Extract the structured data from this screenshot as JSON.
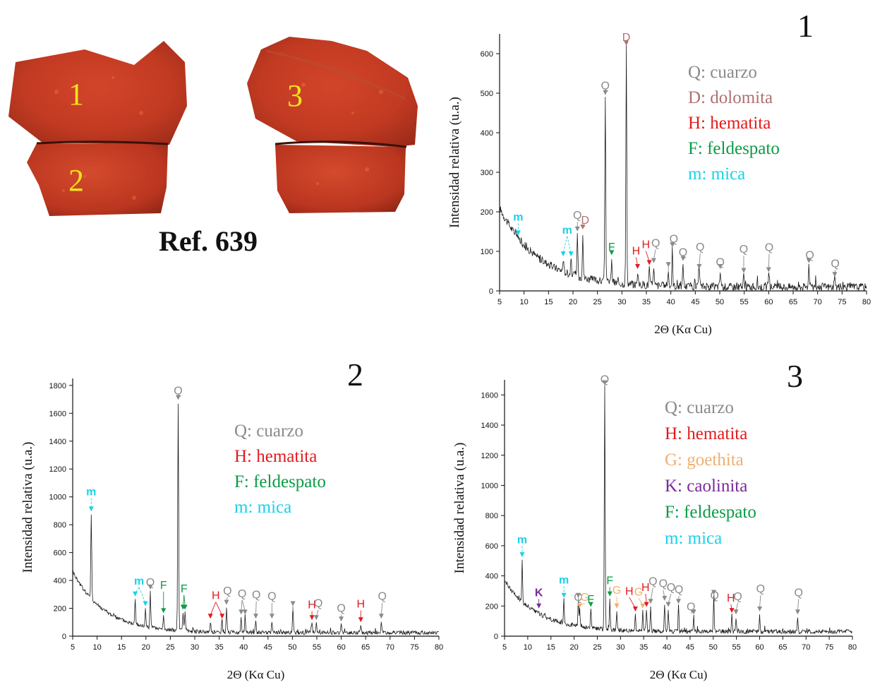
{
  "sample_photo": {
    "reference": "Ref. 639",
    "labels": [
      "1",
      "2",
      "3"
    ]
  },
  "chart_data": [
    {
      "type": "line",
      "panel": "1",
      "xlabel": "2Θ (Kα Cu)",
      "ylabel": "Intensidad relativa (u.a.)",
      "xlim": [
        5,
        80
      ],
      "ylim": [
        0,
        650
      ],
      "xticks": [
        5,
        10,
        15,
        20,
        25,
        30,
        35,
        40,
        45,
        50,
        55,
        60,
        65,
        70,
        75,
        80
      ],
      "yticks": [
        0,
        100,
        200,
        300,
        400,
        500,
        600
      ],
      "legend": [
        {
          "text": "Q: cuarzo",
          "color": "#8a8a8a"
        },
        {
          "text": "D: dolomita",
          "color": "#b07070"
        },
        {
          "text": "H: hematita",
          "color": "#e41a1c"
        },
        {
          "text": "F: feldespato",
          "color": "#0a9b45"
        },
        {
          "text": "m: mica",
          "color": "#1ad2e8"
        }
      ],
      "peaks": [
        {
          "x": 8.8,
          "y": 135,
          "label": "m",
          "ltype": "m",
          "lx": 8.8,
          "ly": 178
        },
        {
          "x": 18.0,
          "y": 82,
          "label": "m",
          "ltype": "m",
          "lx": 18.8,
          "ly": 145
        },
        {
          "x": 19.6,
          "y": 82,
          "label": "",
          "ltype": "m",
          "lx": 18.8,
          "ly": 145
        },
        {
          "x": 20.9,
          "y": 145,
          "label": "Q",
          "ltype": "Q",
          "lx": 20.9,
          "ly": 182
        },
        {
          "x": 22.0,
          "y": 150,
          "label": "D",
          "ltype": "D",
          "lx": 22.5,
          "ly": 170
        },
        {
          "x": 26.6,
          "y": 490,
          "label": "Q",
          "ltype": "Q",
          "lx": 26.6,
          "ly": 510
        },
        {
          "x": 27.9,
          "y": 85,
          "label": "F",
          "ltype": "F",
          "lx": 27.9,
          "ly": 102
        },
        {
          "x": 30.9,
          "y": 615,
          "label": "D",
          "ltype": "D",
          "lx": 30.9,
          "ly": 632
        },
        {
          "x": 33.2,
          "y": 50,
          "label": "H",
          "ltype": "H",
          "lx": 32.9,
          "ly": 92
        },
        {
          "x": 35.6,
          "y": 60,
          "label": "H",
          "ltype": "H",
          "lx": 34.9,
          "ly": 108
        },
        {
          "x": 36.5,
          "y": 65,
          "label": "Q",
          "ltype": "Q",
          "lx": 36.9,
          "ly": 112
        },
        {
          "x": 39.5,
          "y": 55,
          "label": "",
          "ltype": "Q",
          "lx": 39.5,
          "ly": 55
        },
        {
          "x": 40.3,
          "y": 105,
          "label": "Q",
          "ltype": "Q",
          "lx": 40.6,
          "ly": 122
        },
        {
          "x": 42.5,
          "y": 70,
          "label": "Q",
          "ltype": "Q",
          "lx": 42.5,
          "ly": 88
        },
        {
          "x": 45.8,
          "y": 50,
          "label": "Q",
          "ltype": "Q",
          "lx": 46.0,
          "ly": 102
        },
        {
          "x": 50.1,
          "y": 50,
          "label": "Q",
          "ltype": "Q",
          "lx": 50.1,
          "ly": 63
        },
        {
          "x": 54.9,
          "y": 40,
          "label": "Q",
          "ltype": "Q",
          "lx": 54.9,
          "ly": 96
        },
        {
          "x": 60.0,
          "y": 42,
          "label": "Q",
          "ltype": "Q",
          "lx": 60.1,
          "ly": 101
        },
        {
          "x": 68.2,
          "y": 65,
          "label": "Q",
          "ltype": "Q",
          "lx": 68.4,
          "ly": 81
        },
        {
          "x": 73.5,
          "y": 30,
          "label": "Q",
          "ltype": "Q",
          "lx": 73.6,
          "ly": 60
        }
      ]
    },
    {
      "type": "line",
      "panel": "2",
      "xlabel": "2Θ (Kα Cu)",
      "ylabel": "Intensidad relativa (u.a.)",
      "xlim": [
        5,
        80
      ],
      "ylim": [
        0,
        1850
      ],
      "xticks": [
        5,
        10,
        15,
        20,
        25,
        30,
        35,
        40,
        45,
        50,
        55,
        60,
        65,
        70,
        75,
        80
      ],
      "yticks": [
        0,
        200,
        400,
        600,
        800,
        1000,
        1200,
        1400,
        1600,
        1800
      ],
      "legend": [
        {
          "text": "Q: cuarzo",
          "color": "#8a8a8a"
        },
        {
          "text": "H: hematita",
          "color": "#e41a1c"
        },
        {
          "text": "F: feldespato",
          "color": "#0a9b45"
        },
        {
          "text": "m: mica",
          "color": "#1ad2e8"
        }
      ],
      "peaks": [
        {
          "x": 8.8,
          "y": 880,
          "label": "m",
          "ltype": "m",
          "lx": 8.8,
          "ly": 1010
        },
        {
          "x": 17.8,
          "y": 270,
          "label": "m",
          "ltype": "m",
          "lx": 18.6,
          "ly": 370
        },
        {
          "x": 19.9,
          "y": 200,
          "label": "",
          "ltype": "m",
          "lx": 18.6,
          "ly": 370
        },
        {
          "x": 20.9,
          "y": 320,
          "label": "Q",
          "ltype": "Q",
          "lx": 20.9,
          "ly": 360
        },
        {
          "x": 23.6,
          "y": 150,
          "label": "F",
          "ltype": "F",
          "lx": 23.6,
          "ly": 340
        },
        {
          "x": 26.6,
          "y": 1680,
          "label": "Q",
          "ltype": "Q",
          "lx": 26.6,
          "ly": 1735
        },
        {
          "x": 27.6,
          "y": 175,
          "label": "F",
          "ltype": "F",
          "lx": 27.8,
          "ly": 315
        },
        {
          "x": 28.0,
          "y": 175,
          "label": "",
          "ltype": "F",
          "lx": 27.8,
          "ly": 315
        },
        {
          "x": 33.2,
          "y": 110,
          "label": "H",
          "ltype": "H",
          "lx": 34.3,
          "ly": 265
        },
        {
          "x": 35.6,
          "y": 110,
          "label": "",
          "ltype": "H",
          "lx": 34.3,
          "ly": 265
        },
        {
          "x": 36.5,
          "y": 210,
          "label": "Q",
          "ltype": "Q",
          "lx": 36.7,
          "ly": 300
        },
        {
          "x": 39.5,
          "y": 140,
          "label": "Q",
          "ltype": "Q",
          "lx": 39.7,
          "ly": 280
        },
        {
          "x": 40.3,
          "y": 140,
          "label": "",
          "ltype": "Q",
          "lx": 39.7,
          "ly": 280
        },
        {
          "x": 42.5,
          "y": 110,
          "label": "Q",
          "ltype": "Q",
          "lx": 42.6,
          "ly": 270
        },
        {
          "x": 45.8,
          "y": 110,
          "label": "Q",
          "ltype": "Q",
          "lx": 45.8,
          "ly": 260
        },
        {
          "x": 50.1,
          "y": 200,
          "label": "",
          "ltype": "Q",
          "lx": 50.1,
          "ly": 200
        },
        {
          "x": 54.0,
          "y": 100,
          "label": "H",
          "ltype": "H",
          "lx": 54.0,
          "ly": 200
        },
        {
          "x": 54.9,
          "y": 100,
          "label": "Q",
          "ltype": "Q",
          "lx": 55.3,
          "ly": 210
        },
        {
          "x": 60.0,
          "y": 90,
          "label": "Q",
          "ltype": "Q",
          "lx": 60.0,
          "ly": 175
        },
        {
          "x": 64.0,
          "y": 85,
          "label": "H",
          "ltype": "H",
          "lx": 64.0,
          "ly": 205
        },
        {
          "x": 68.2,
          "y": 110,
          "label": "Q",
          "ltype": "Q",
          "lx": 68.4,
          "ly": 260
        }
      ]
    },
    {
      "type": "line",
      "panel": "3",
      "xlabel": "2Θ (Kα Cu)",
      "ylabel": "Intensidad relativa (u.a.)",
      "xlim": [
        5,
        80
      ],
      "ylim": [
        0,
        1700
      ],
      "xticks": [
        5,
        10,
        15,
        20,
        25,
        30,
        35,
        40,
        45,
        50,
        55,
        60,
        65,
        70,
        75,
        80
      ],
      "yticks": [
        0,
        200,
        400,
        600,
        800,
        1000,
        1200,
        1400,
        1600
      ],
      "legend": [
        {
          "text": "Q: cuarzo",
          "color": "#8a8a8a"
        },
        {
          "text": "H: hematita",
          "color": "#e41a1c"
        },
        {
          "text": "G: goethita",
          "color": "#f0b070"
        },
        {
          "text": "K: caolinita",
          "color": "#7a2a9a"
        },
        {
          "text": "F: feldespato",
          "color": "#0a9b45"
        },
        {
          "text": "m: mica",
          "color": "#1ad2e8"
        }
      ],
      "peaks": [
        {
          "x": 8.8,
          "y": 510,
          "label": "m",
          "ltype": "m",
          "lx": 8.8,
          "ly": 615
        },
        {
          "x": 12.4,
          "y": 170,
          "label": "K",
          "ltype": "K",
          "lx": 12.4,
          "ly": 265
        },
        {
          "x": 17.8,
          "y": 240,
          "label": "m",
          "ltype": "m",
          "lx": 17.8,
          "ly": 350
        },
        {
          "x": 20.9,
          "y": 240,
          "label": "Q",
          "ltype": "Q",
          "lx": 20.9,
          "ly": 235
        },
        {
          "x": 21.2,
          "y": 170,
          "label": "G",
          "ltype": "G",
          "lx": 22.3,
          "ly": 235
        },
        {
          "x": 23.6,
          "y": 180,
          "label": "F",
          "ltype": "F",
          "lx": 23.6,
          "ly": 220
        },
        {
          "x": 26.6,
          "y": 1650,
          "label": "Q",
          "ltype": "Q",
          "lx": 26.6,
          "ly": 1680
        },
        {
          "x": 27.7,
          "y": 250,
          "label": "F",
          "ltype": "F",
          "lx": 27.7,
          "ly": 345
        },
        {
          "x": 29.2,
          "y": 170,
          "label": "G",
          "ltype": "G",
          "lx": 29.2,
          "ly": 280
        },
        {
          "x": 33.2,
          "y": 150,
          "label": "H",
          "ltype": "H",
          "lx": 31.9,
          "ly": 275
        },
        {
          "x": 34.8,
          "y": 170,
          "label": "G",
          "ltype": "G",
          "lx": 33.9,
          "ly": 270
        },
        {
          "x": 35.6,
          "y": 180,
          "label": "H",
          "ltype": "H",
          "lx": 35.4,
          "ly": 300
        },
        {
          "x": 36.5,
          "y": 200,
          "label": "Q",
          "ltype": "Q",
          "lx": 37.0,
          "ly": 340
        },
        {
          "x": 39.5,
          "y": 220,
          "label": "Q",
          "ltype": "Q",
          "lx": 39.2,
          "ly": 325
        },
        {
          "x": 40.3,
          "y": 180,
          "label": "Q",
          "ltype": "Q",
          "lx": 40.9,
          "ly": 300
        },
        {
          "x": 42.5,
          "y": 200,
          "label": "Q",
          "ltype": "Q",
          "lx": 42.6,
          "ly": 285
        },
        {
          "x": 45.8,
          "y": 130,
          "label": "Q",
          "ltype": "Q",
          "lx": 45.2,
          "ly": 170
        },
        {
          "x": 50.1,
          "y": 260,
          "label": "Q",
          "ltype": "Q",
          "lx": 50.3,
          "ly": 245
        },
        {
          "x": 54.0,
          "y": 140,
          "label": "H",
          "ltype": "H",
          "lx": 53.8,
          "ly": 230
        },
        {
          "x": 54.9,
          "y": 130,
          "label": "Q",
          "ltype": "Q",
          "lx": 55.3,
          "ly": 240
        },
        {
          "x": 60.0,
          "y": 150,
          "label": "Q",
          "ltype": "Q",
          "lx": 60.2,
          "ly": 290
        },
        {
          "x": 68.2,
          "y": 130,
          "label": "Q",
          "ltype": "Q",
          "lx": 68.4,
          "ly": 265
        }
      ]
    }
  ],
  "colors": {
    "Q": "#8a8a8a",
    "D": "#b07070",
    "H": "#e41a1c",
    "F": "#0a9b45",
    "m": "#1ad2e8",
    "G": "#f0b070",
    "K": "#7a2a9a",
    "trace": "#1a1a1a"
  }
}
